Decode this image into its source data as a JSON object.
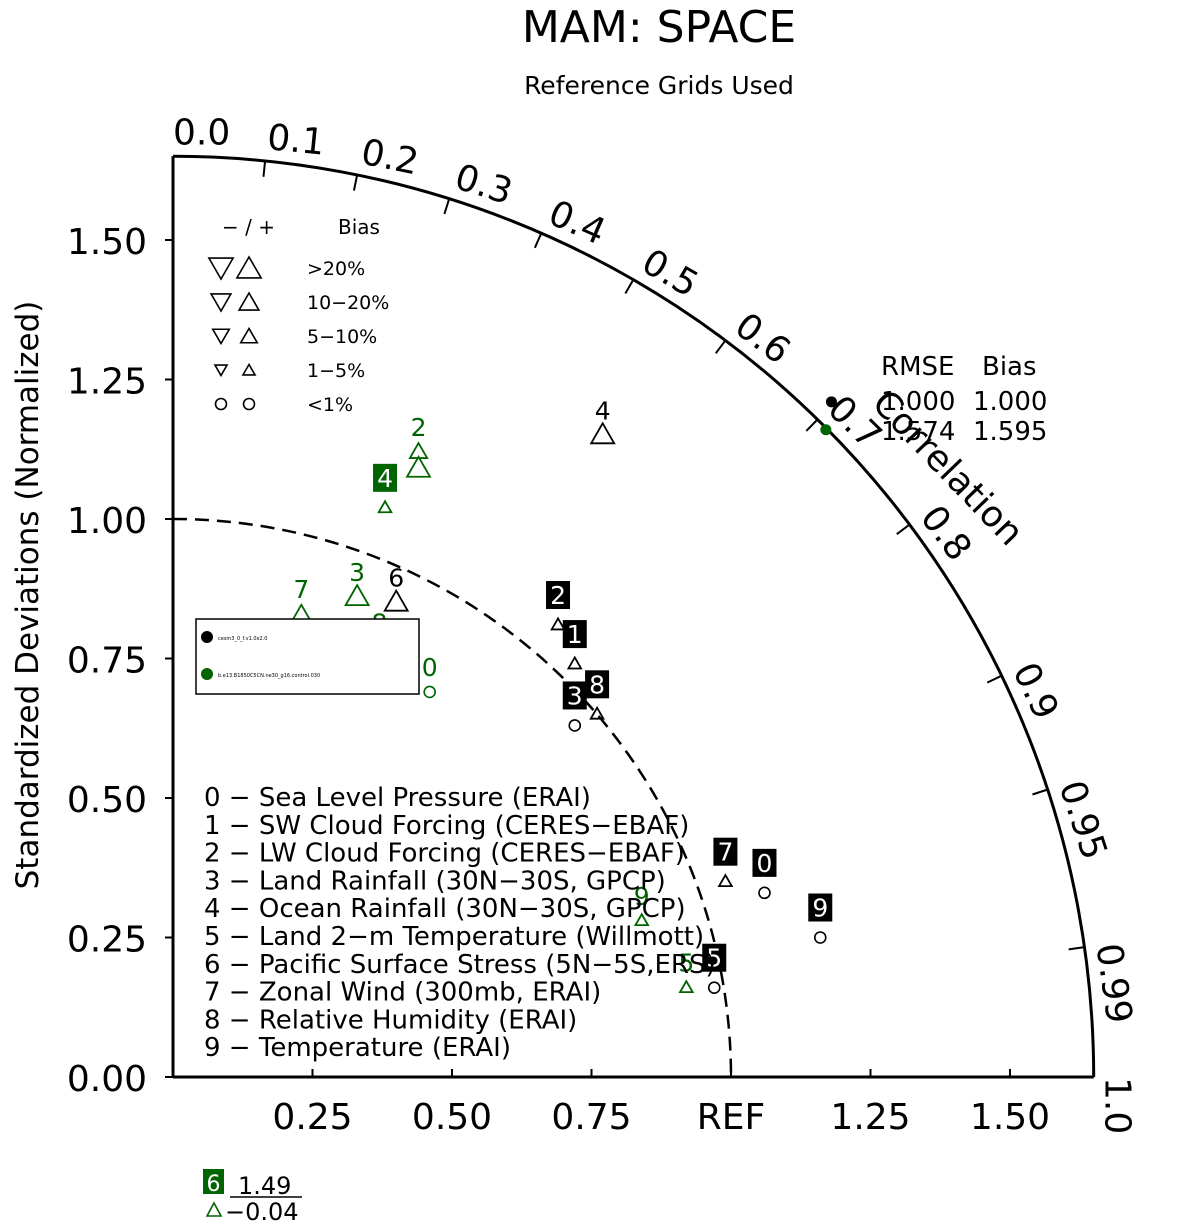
{
  "title": "MAM: SPACE",
  "subtitle": "Reference Grids Used",
  "y_axis_label": "Standardized Deviations (Normalized)",
  "correlation_label": "Correlation",
  "ref_label": "REF",
  "colors": {
    "black_model": "#000000",
    "green_model": "#006400"
  },
  "bias_legend": {
    "header_signs": "−  /  +",
    "header_bias": "Bias",
    "rows": [
      {
        "symbol": "triangle",
        "label": ">20%"
      },
      {
        "symbol": "triangle",
        "label": "10−20%"
      },
      {
        "symbol": "triangle",
        "label": "5−10%"
      },
      {
        "symbol": "triangle",
        "label": "1−5%"
      },
      {
        "symbol": "circle",
        "label": "<1%"
      }
    ]
  },
  "summary": {
    "rmse_header": "RMSE",
    "bias_header": "Bias",
    "rows": [
      {
        "rmse": "1.000",
        "bias": "1.000",
        "color": "#000000"
      },
      {
        "rmse": "1.574",
        "bias": "1.595",
        "color": "#006400"
      }
    ]
  },
  "case_legend": [
    {
      "label": "cesm3_0_f.v1.0x2.0",
      "color": "#000000"
    },
    {
      "label": "b.e13.B1850C5CN.ne30_g16.control.030",
      "color": "#006400"
    }
  ],
  "variables": [
    "0 − Sea Level Pressure (ERAI)",
    "1 − SW Cloud Forcing (CERES−EBAF)",
    "2 − LW Cloud Forcing (CERES−EBAF)",
    "3 − Land Rainfall (30N−30S, GPCP)",
    "4 − Ocean Rainfall (30N−30S, GPCP)",
    "5 − Land 2−m Temperature (Willmott)",
    "6 − Pacific Surface Stress (5N−5S,ERS)",
    "7 − Zonal Wind (300mb, ERAI)",
    "8 − Relative Humidity (ERAI)",
    "9 − Temperature (ERAI)"
  ],
  "offscale_note": {
    "id": "6",
    "value": "1.49",
    "bias": "−0.04",
    "color": "#006400"
  },
  "chart_data": {
    "type": "scatter",
    "title": "MAM: SPACE",
    "subtitle": "Reference Grids Used",
    "ylabel": "Standardized Deviations (Normalized)",
    "x_ticks": [
      0.25,
      0.5,
      0.75,
      1.0,
      1.25,
      1.5
    ],
    "x_tick_labels": [
      "0.25",
      "0.50",
      "0.75",
      "REF",
      "1.25",
      "1.50"
    ],
    "y_ticks": [
      0.0,
      0.25,
      0.5,
      0.75,
      1.0,
      1.25,
      1.5
    ],
    "y_tick_labels": [
      "0.00",
      "0.25",
      "0.50",
      "0.75",
      "1.00",
      "1.25",
      "1.50"
    ],
    "correlation_ticks": [
      {
        "value": 0.0,
        "label": "0.0"
      },
      {
        "value": 0.1,
        "label": "0.1"
      },
      {
        "value": 0.2,
        "label": "0.2"
      },
      {
        "value": 0.3,
        "label": "0.3"
      },
      {
        "value": 0.4,
        "label": "0.4"
      },
      {
        "value": 0.5,
        "label": "0.5"
      },
      {
        "value": 0.6,
        "label": "0.6"
      },
      {
        "value": 0.7,
        "label": "0.7"
      },
      {
        "value": 0.8,
        "label": "0.8"
      },
      {
        "value": 0.9,
        "label": "0.9"
      },
      {
        "value": 0.95,
        "label": "0.95"
      },
      {
        "value": 0.99,
        "label": "0.99"
      },
      {
        "value": 1.0,
        "label": "1.0"
      }
    ],
    "max_std": 1.65,
    "ref_arc": 1.0,
    "series": [
      {
        "name": "cesm3_0_f.v1.0x2.0",
        "color": "#000000",
        "summary_point": {
          "x": 1.18,
          "y": 1.21
        },
        "points": [
          {
            "id": "0",
            "x": 1.06,
            "y": 0.33,
            "marker": "circle",
            "size": 1,
            "label_style": "box"
          },
          {
            "id": "1",
            "x": 0.72,
            "y": 0.74,
            "marker": "up",
            "size": 1,
            "label_style": "box"
          },
          {
            "id": "2",
            "x": 0.69,
            "y": 0.81,
            "marker": "up",
            "size": 1,
            "label_style": "box"
          },
          {
            "id": "3",
            "x": 0.72,
            "y": 0.63,
            "marker": "circle",
            "size": 1,
            "label_style": "box"
          },
          {
            "id": "4",
            "x": 0.77,
            "y": 1.15,
            "marker": "up",
            "size": 3,
            "label_style": "plain"
          },
          {
            "id": "5",
            "x": 0.97,
            "y": 0.16,
            "marker": "circle",
            "size": 1,
            "label_style": "box"
          },
          {
            "id": "6",
            "x": 0.4,
            "y": 0.85,
            "marker": "up",
            "size": 3,
            "label_style": "plain"
          },
          {
            "id": "7",
            "x": 0.99,
            "y": 0.35,
            "marker": "up",
            "size": 1,
            "label_style": "box"
          },
          {
            "id": "8",
            "x": 0.76,
            "y": 0.65,
            "marker": "up",
            "size": 1,
            "label_style": "box"
          },
          {
            "id": "9",
            "x": 1.16,
            "y": 0.25,
            "marker": "circle",
            "size": 1,
            "label_style": "box"
          }
        ]
      },
      {
        "name": "b.e13.B1850C5CN.ne30_g16.control.030",
        "color": "#006400",
        "summary_point": {
          "x": 1.17,
          "y": 1.16
        },
        "points": [
          {
            "id": "0",
            "x": 0.46,
            "y": 0.69,
            "marker": "circle",
            "size": 1,
            "label_style": "plain"
          },
          {
            "id": "2",
            "x": 0.44,
            "y": 1.12,
            "marker": "up",
            "size": 2,
            "label_style": "plain"
          },
          {
            "id": "2b",
            "x": 0.44,
            "y": 1.09,
            "marker": "up",
            "size": 3,
            "label_style": "none"
          },
          {
            "id": "3",
            "x": 0.33,
            "y": 0.86,
            "marker": "up",
            "size": 3,
            "label_style": "plain"
          },
          {
            "id": "4",
            "x": 0.38,
            "y": 1.02,
            "marker": "up",
            "size": 1,
            "label_style": "box"
          },
          {
            "id": "5",
            "x": 0.92,
            "y": 0.16,
            "marker": "up",
            "size": 1,
            "label_style": "plain"
          },
          {
            "id": "7",
            "x": 0.23,
            "y": 0.83,
            "marker": "up",
            "size": 2,
            "label_style": "plain"
          },
          {
            "id": "8",
            "x": 0.37,
            "y": 0.77,
            "marker": "up",
            "size": 3,
            "label_style": "plain"
          },
          {
            "id": "9",
            "x": 0.84,
            "y": 0.28,
            "marker": "up",
            "size": 1,
            "label_style": "plain"
          }
        ]
      }
    ]
  }
}
